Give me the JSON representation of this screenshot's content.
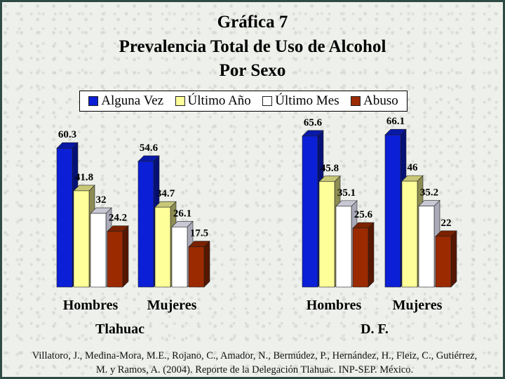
{
  "title": {
    "line1": "Gráfica 7",
    "line2": "Prevalencia Total de Uso de Alcohol",
    "line3": "Por Sexo"
  },
  "legend": {
    "items": [
      {
        "label": "Alguna Vez",
        "color": "#0a1fd6"
      },
      {
        "label": "Último Año",
        "color": "#ffff99"
      },
      {
        "label": "Último Mes",
        "color": "#ffffff"
      },
      {
        "label": "Abuso",
        "color": "#9b2a00"
      }
    ]
  },
  "chart_data": [
    {
      "type": "bar",
      "title": "Tlahuac",
      "categories": [
        "Hombres",
        "Mujeres"
      ],
      "series": [
        {
          "name": "Alguna Vez",
          "values": [
            60.3,
            54.6
          ]
        },
        {
          "name": "Último Año",
          "values": [
            41.8,
            34.7
          ]
        },
        {
          "name": "Último Mes",
          "values": [
            32,
            26.1
          ]
        },
        {
          "name": "Abuso",
          "values": [
            24.2,
            17.5
          ]
        }
      ],
      "xlabel": "",
      "ylabel": "",
      "ylim": [
        0,
        70
      ],
      "grid": false,
      "legend": "top"
    },
    {
      "type": "bar",
      "title": "D. F.",
      "categories": [
        "Hombres",
        "Mujeres"
      ],
      "series": [
        {
          "name": "Alguna Vez",
          "values": [
            65.6,
            66.1
          ]
        },
        {
          "name": "Último Año",
          "values": [
            45.8,
            46
          ]
        },
        {
          "name": "Último Mes",
          "values": [
            35.1,
            35.2
          ]
        },
        {
          "name": "Abuso",
          "values": [
            25.6,
            22
          ]
        }
      ],
      "xlabel": "",
      "ylabel": "",
      "ylim": [
        0,
        70
      ],
      "grid": false,
      "legend": "top"
    }
  ],
  "source": "Villatoro, J., Medina-Mora, M.E., Rojano, C., Amador, N., Bermúdez, P., Hernández, H., Fleiz, C., Gutiérrez, M. y Ramos, A. (2004). Reporte de la Delegación Tlahuac. INP-SEP. México."
}
